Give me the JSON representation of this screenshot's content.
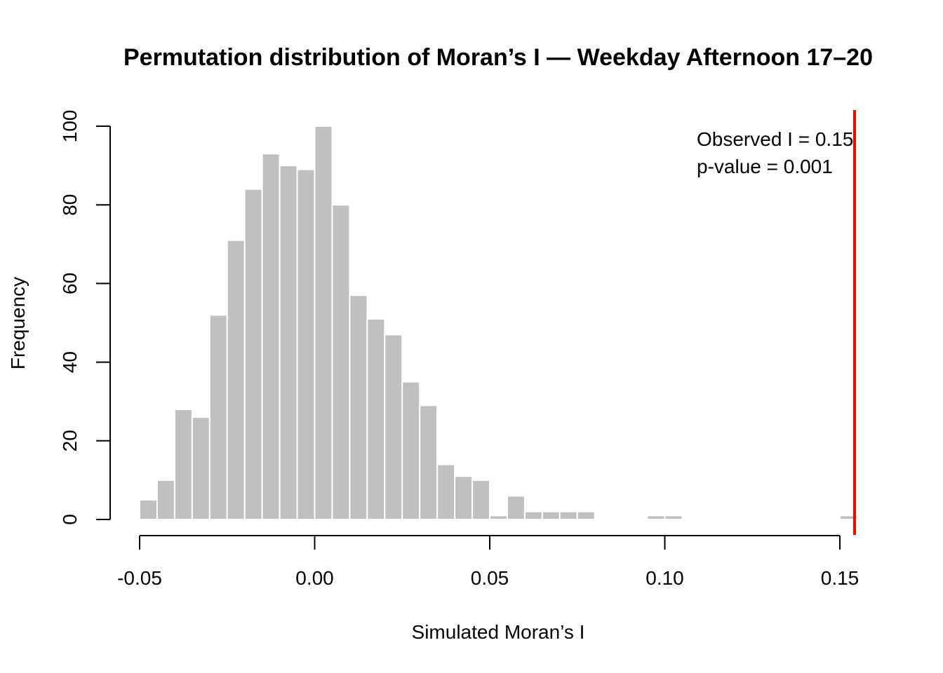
{
  "chart_data": {
    "type": "bar",
    "subtype": "histogram",
    "title": "Permutation distribution of Moran’s I — Weekday Afternoon 17–20",
    "xlabel": "Simulated Moran’s I",
    "ylabel": "Frequency",
    "bin_width": 0.005,
    "bin_start": -0.05,
    "values": [
      5,
      10,
      28,
      26,
      52,
      71,
      84,
      93,
      90,
      89,
      100,
      80,
      57,
      51,
      47,
      35,
      29,
      14,
      11,
      10,
      1,
      6,
      2,
      2,
      2,
      2,
      0,
      0,
      0,
      1,
      1,
      0,
      0,
      0,
      0,
      0,
      0,
      0,
      0,
      0,
      1
    ],
    "xlim": [
      -0.05,
      0.155
    ],
    "ylim": [
      0,
      100
    ],
    "x_ticks": [
      -0.05,
      0.0,
      0.05,
      0.1,
      0.15
    ],
    "x_tick_labels": [
      "-0.05",
      "0.00",
      "0.05",
      "0.10",
      "0.15"
    ],
    "y_ticks": [
      0,
      20,
      40,
      60,
      80,
      100
    ],
    "y_tick_labels": [
      "0",
      "20",
      "40",
      "60",
      "80",
      "100"
    ],
    "observed_value": 0.1542,
    "annotations": [
      "Observed I = 0.15",
      "p-value = 0.001"
    ],
    "grid": false,
    "colors": {
      "bars": "#c0c0c0",
      "bar_border": "#ffffff",
      "observed_line": "#ff0000",
      "axis": "#000000"
    }
  }
}
